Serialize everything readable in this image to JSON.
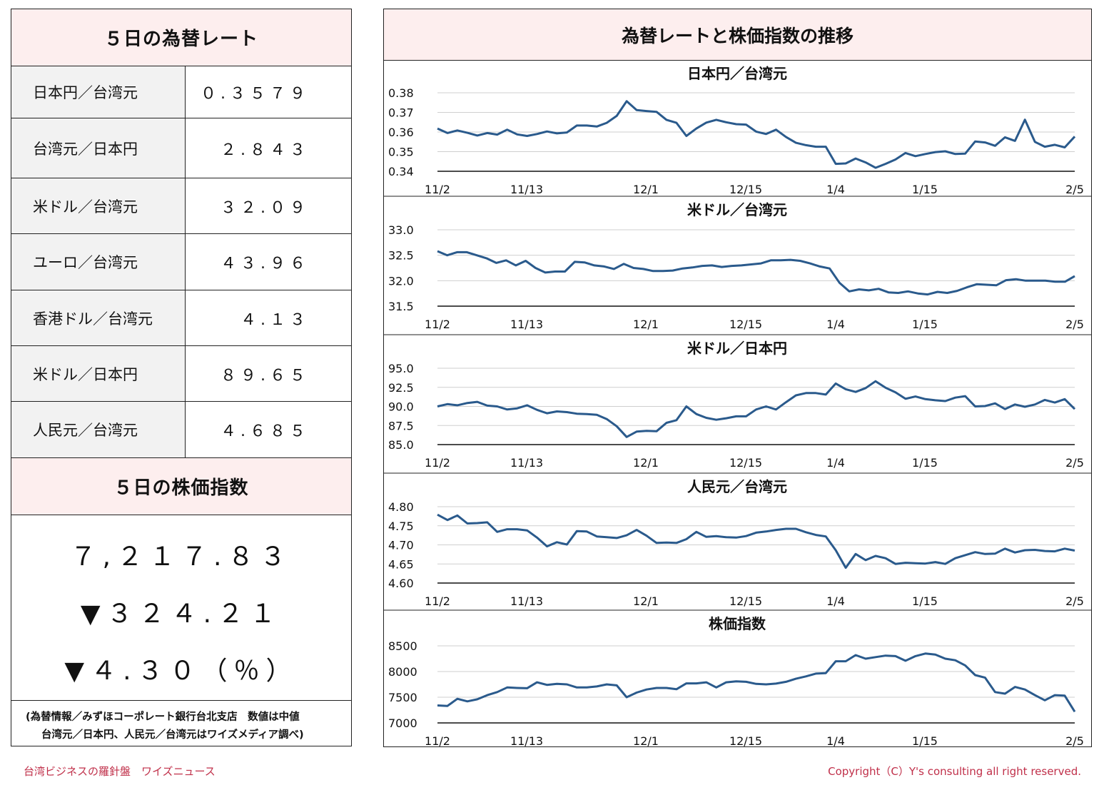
{
  "left_panel": {
    "rates_title": "５日の為替レート",
    "rates": [
      {
        "label": "日本円／台湾元",
        "value": "０.３５７９"
      },
      {
        "label": "台湾元／日本円",
        "value": "２.８４３"
      },
      {
        "label": "米ドル／台湾元",
        "value": "３２.０９"
      },
      {
        "label": "ユーロ／台湾元",
        "value": "４３.９６"
      },
      {
        "label": "香港ドル／台湾元",
        "value": "４.１３"
      },
      {
        "label": "米ドル／日本円",
        "value": "８９.６５"
      },
      {
        "label": "人民元／台湾元",
        "value": "４.６８５"
      }
    ],
    "stock_title": "５日の株価指数",
    "stock_value": "７,２１７.８３",
    "stock_change": "▼３２４.２１",
    "stock_change_pct": "▼４.３０（％）",
    "note_line1": "(為替情報／みずほコーポレート銀行台北支店　数値は中値",
    "note_line2": "台湾元／日本円、人民元／台湾元はワイズメディア調べ)"
  },
  "right_panel": {
    "title": "為替レートと株価指数の推移"
  },
  "footer": {
    "left": "台湾ビジネスの羅針盤　ワイズニュース",
    "right": "Copyright（C）Y's consulting all right reserved."
  },
  "colors": {
    "line": "#2a5a8c",
    "header_bg": "#fdeeee",
    "label_bg": "#f2f2f2",
    "footer_text": "#c0304a"
  },
  "chart_data": [
    {
      "type": "line",
      "title": "日本円／台湾元",
      "x_ticks": [
        "11/2",
        "11/13",
        "12/1",
        "12/15",
        "1/4",
        "1/15",
        "2/5"
      ],
      "y_ticks": [
        "0.38",
        "0.37",
        "0.36",
        "0.35",
        "0.34"
      ],
      "ylim": [
        0.34,
        0.38
      ],
      "values": [
        0.3618,
        0.3595,
        0.3608,
        0.3596,
        0.3582,
        0.3595,
        0.3587,
        0.3612,
        0.3588,
        0.358,
        0.359,
        0.3603,
        0.3593,
        0.3598,
        0.3633,
        0.3633,
        0.3628,
        0.3647,
        0.3682,
        0.3757,
        0.3712,
        0.3707,
        0.3703,
        0.3662,
        0.3647,
        0.358,
        0.3618,
        0.3648,
        0.3662,
        0.365,
        0.364,
        0.3638,
        0.3602,
        0.359,
        0.3612,
        0.3575,
        0.3545,
        0.3533,
        0.3525,
        0.3525,
        0.3438,
        0.344,
        0.3465,
        0.3445,
        0.3418,
        0.3438,
        0.346,
        0.3493,
        0.3477,
        0.3488,
        0.3498,
        0.3502,
        0.3488,
        0.349,
        0.3552,
        0.3547,
        0.353,
        0.3573,
        0.3555,
        0.3663,
        0.355,
        0.3525,
        0.3535,
        0.3522,
        0.3577
      ]
    },
    {
      "type": "line",
      "title": "米ドル／台湾元",
      "x_ticks": [
        "11/2",
        "11/13",
        "12/1",
        "12/15",
        "1/4",
        "1/15",
        "2/5"
      ],
      "y_ticks": [
        "33.0",
        "32.5",
        "32.0",
        "31.5"
      ],
      "ylim": [
        31.5,
        33.0
      ],
      "values": [
        32.58,
        32.5,
        32.56,
        32.56,
        32.5,
        32.44,
        32.35,
        32.4,
        32.3,
        32.39,
        32.25,
        32.16,
        32.18,
        32.18,
        32.37,
        32.36,
        32.3,
        32.28,
        32.23,
        32.33,
        32.25,
        32.23,
        32.19,
        32.19,
        32.2,
        32.24,
        32.26,
        32.29,
        32.3,
        32.27,
        32.29,
        32.3,
        32.32,
        32.34,
        32.4,
        32.4,
        32.41,
        32.39,
        32.34,
        32.28,
        32.24,
        31.96,
        31.79,
        31.83,
        31.81,
        31.84,
        31.77,
        31.76,
        31.79,
        31.75,
        31.73,
        31.78,
        31.76,
        31.8,
        31.87,
        31.93,
        31.92,
        31.91,
        32.01,
        32.03,
        32.0,
        32.0,
        32.0,
        31.98,
        31.98,
        32.09
      ]
    },
    {
      "type": "line",
      "title": "米ドル／日本円",
      "x_ticks": [
        "11/2",
        "11/13",
        "12/1",
        "12/15",
        "1/4",
        "1/15",
        "2/5"
      ],
      "y_ticks": [
        "95.0",
        "92.5",
        "90.0",
        "87.5",
        "85.0"
      ],
      "ylim": [
        85.0,
        95.0
      ],
      "values": [
        90.0,
        90.3,
        90.15,
        90.45,
        90.6,
        90.1,
        90.0,
        89.6,
        89.75,
        90.15,
        89.55,
        89.1,
        89.35,
        89.25,
        89.05,
        89.0,
        88.9,
        88.35,
        87.4,
        86.0,
        86.7,
        86.8,
        86.75,
        87.85,
        88.2,
        90.0,
        89.0,
        88.5,
        88.25,
        88.45,
        88.7,
        88.7,
        89.6,
        90.0,
        89.6,
        90.55,
        91.45,
        91.75,
        91.75,
        91.55,
        93.0,
        92.25,
        91.9,
        92.4,
        93.3,
        92.45,
        91.85,
        91.0,
        91.3,
        90.95,
        90.8,
        90.7,
        91.15,
        91.35,
        90.0,
        90.05,
        90.4,
        89.65,
        90.25,
        89.95,
        90.25,
        90.85,
        90.5,
        90.95,
        89.65
      ]
    },
    {
      "type": "line",
      "title": "人民元／台湾元",
      "x_ticks": [
        "11/2",
        "11/13",
        "12/1",
        "12/15",
        "1/4",
        "1/15",
        "2/5"
      ],
      "y_ticks": [
        "4.80",
        "4.75",
        "4.70",
        "4.65",
        "4.60"
      ],
      "ylim": [
        4.6,
        4.8
      ],
      "values": [
        4.779,
        4.765,
        4.777,
        4.756,
        4.757,
        4.759,
        4.734,
        4.741,
        4.741,
        4.738,
        4.719,
        4.696,
        4.707,
        4.701,
        4.736,
        4.735,
        4.722,
        4.72,
        4.718,
        4.725,
        4.739,
        4.724,
        4.705,
        4.706,
        4.705,
        4.715,
        4.734,
        4.721,
        4.723,
        4.72,
        4.719,
        4.723,
        4.732,
        4.735,
        4.739,
        4.742,
        4.742,
        4.733,
        4.726,
        4.722,
        4.686,
        4.64,
        4.676,
        4.66,
        4.671,
        4.665,
        4.65,
        4.653,
        4.652,
        4.651,
        4.655,
        4.65,
        4.665,
        4.673,
        4.681,
        4.676,
        4.677,
        4.69,
        4.68,
        4.686,
        4.687,
        4.684,
        4.683,
        4.69,
        4.685
      ]
    },
    {
      "type": "line",
      "title": "株価指数",
      "x_ticks": [
        "11/2",
        "11/13",
        "12/1",
        "12/15",
        "1/4",
        "1/15",
        "2/5"
      ],
      "y_ticks": [
        "8500",
        "8000",
        "7500",
        "7000"
      ],
      "ylim": [
        7000,
        8500
      ],
      "values": [
        7340,
        7330,
        7470,
        7420,
        7460,
        7540,
        7600,
        7690,
        7680,
        7675,
        7790,
        7740,
        7760,
        7750,
        7690,
        7690,
        7710,
        7750,
        7730,
        7500,
        7590,
        7650,
        7680,
        7680,
        7655,
        7770,
        7770,
        7790,
        7690,
        7790,
        7810,
        7800,
        7760,
        7750,
        7765,
        7800,
        7860,
        7905,
        7960,
        7970,
        8200,
        8200,
        8320,
        8250,
        8280,
        8310,
        8300,
        8210,
        8300,
        8350,
        8330,
        8250,
        8220,
        8120,
        7930,
        7880,
        7600,
        7570,
        7700,
        7650,
        7540,
        7440,
        7540,
        7530,
        7218
      ]
    }
  ]
}
